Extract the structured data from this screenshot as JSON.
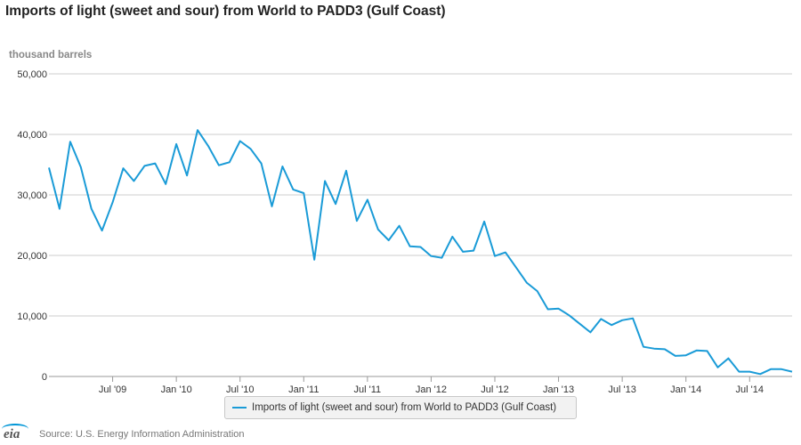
{
  "chart_title": "Imports of light (sweet and sour) from World to PADD3 (Gulf Coast)",
  "units_label": "thousand barrels",
  "source_text": "Source: U.S. Energy Information Administration",
  "logo_text": "eia",
  "colors": {
    "series": "#1a9bd7",
    "grid": "#cccccc"
  },
  "chart_data": {
    "type": "line",
    "title": "Imports of light (sweet and sour) from World to PADD3 (Gulf Coast)",
    "ylabel": "thousand barrels",
    "ylim": [
      0,
      50000
    ],
    "yticks": [
      0,
      10000,
      20000,
      30000,
      40000,
      50000
    ],
    "ytick_labels": [
      "0",
      "10,000",
      "20,000",
      "30,000",
      "40,000",
      "50,000"
    ],
    "xticks": [
      {
        "x": "2009-07",
        "label": "Jul '09"
      },
      {
        "x": "2010-01",
        "label": "Jan '10"
      },
      {
        "x": "2010-07",
        "label": "Jul '10"
      },
      {
        "x": "2011-01",
        "label": "Jan '11"
      },
      {
        "x": "2011-07",
        "label": "Jul '11"
      },
      {
        "x": "2012-01",
        "label": "Jan '12"
      },
      {
        "x": "2012-07",
        "label": "Jul '12"
      },
      {
        "x": "2013-01",
        "label": "Jan '13"
      },
      {
        "x": "2013-07",
        "label": "Jul '13"
      },
      {
        "x": "2014-01",
        "label": "Jan '14"
      },
      {
        "x": "2014-07",
        "label": "Jul '14"
      }
    ],
    "grid": true,
    "legend_position": "bottom-center",
    "series": [
      {
        "name": "Imports of light (sweet and sour) from World to PADD3 (Gulf Coast)",
        "x": [
          "2009-01",
          "2009-02",
          "2009-03",
          "2009-04",
          "2009-05",
          "2009-06",
          "2009-07",
          "2009-08",
          "2009-09",
          "2009-10",
          "2009-11",
          "2009-12",
          "2010-01",
          "2010-02",
          "2010-03",
          "2010-04",
          "2010-05",
          "2010-06",
          "2010-07",
          "2010-08",
          "2010-09",
          "2010-10",
          "2010-11",
          "2010-12",
          "2011-01",
          "2011-02",
          "2011-03",
          "2011-04",
          "2011-05",
          "2011-06",
          "2011-07",
          "2011-08",
          "2011-09",
          "2011-10",
          "2011-11",
          "2011-12",
          "2012-01",
          "2012-02",
          "2012-03",
          "2012-04",
          "2012-05",
          "2012-06",
          "2012-07",
          "2012-08",
          "2012-09",
          "2012-10",
          "2012-11",
          "2012-12",
          "2013-01",
          "2013-02",
          "2013-03",
          "2013-04",
          "2013-05",
          "2013-06",
          "2013-07",
          "2013-08",
          "2013-09",
          "2013-10",
          "2013-11",
          "2013-12",
          "2014-01",
          "2014-02",
          "2014-03",
          "2014-04",
          "2014-05",
          "2014-06",
          "2014-07",
          "2014-08",
          "2014-09",
          "2014-10",
          "2014-11"
        ],
        "values": [
          34500,
          27700,
          38800,
          34600,
          27700,
          24100,
          28800,
          34400,
          32300,
          34800,
          35200,
          31800,
          38400,
          33200,
          40700,
          38100,
          34900,
          35400,
          38900,
          37600,
          35200,
          28100,
          34700,
          30900,
          30300,
          19300,
          32300,
          28500,
          34000,
          25700,
          29200,
          24300,
          22500,
          24900,
          21500,
          21400,
          19900,
          19600,
          23100,
          20600,
          20800,
          25600,
          19900,
          20500,
          18000,
          15500,
          14100,
          11100,
          11200,
          10100,
          8700,
          7300,
          9500,
          8500,
          9300,
          9600,
          4900,
          4600,
          4500,
          3400,
          3500,
          4300,
          4200,
          1500,
          3000,
          800,
          800,
          400,
          1200,
          1200,
          800
        ]
      }
    ]
  }
}
